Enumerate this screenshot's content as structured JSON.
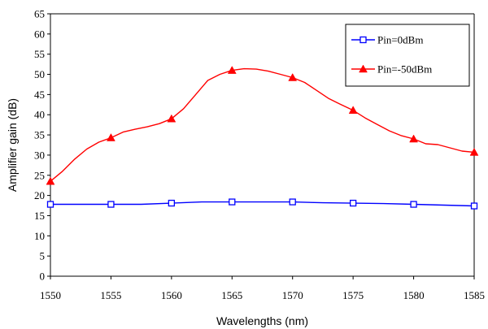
{
  "chart_data": {
    "type": "line",
    "xlabel": "Wavelengths (nm)",
    "ylabel": "Amplifier gain (dB)",
    "xlim": [
      1550,
      1585
    ],
    "ylim": [
      0,
      65
    ],
    "x_ticks": [
      1550,
      1555,
      1560,
      1565,
      1570,
      1575,
      1580,
      1585
    ],
    "y_ticks": [
      0,
      5,
      10,
      15,
      20,
      25,
      30,
      35,
      40,
      45,
      50,
      55,
      60,
      65
    ],
    "grid": false,
    "legend_position": "top-right",
    "series": [
      {
        "name": "Pin=0dBm",
        "color": "#0000ff",
        "marker": "square-open",
        "x": [
          1550,
          1555,
          1560,
          1565,
          1570,
          1575,
          1580,
          1585
        ],
        "y": [
          17.8,
          17.8,
          18.1,
          18.4,
          18.4,
          18.1,
          17.8,
          17.4
        ],
        "curve_x": [
          1550,
          1552.5,
          1555,
          1557.5,
          1560,
          1562.5,
          1565,
          1567.5,
          1570,
          1572.5,
          1575,
          1577.5,
          1580,
          1582.5,
          1585
        ],
        "curve_y": [
          17.8,
          17.8,
          17.8,
          17.8,
          18.1,
          18.4,
          18.4,
          18.4,
          18.4,
          18.2,
          18.1,
          18.0,
          17.8,
          17.6,
          17.4
        ]
      },
      {
        "name": "Pin=-50dBm",
        "color": "#ff0000",
        "marker": "triangle-filled",
        "x": [
          1550,
          1555,
          1560,
          1565,
          1570,
          1575,
          1580,
          1585
        ],
        "y": [
          23.5,
          34.3,
          39.0,
          51.0,
          49.2,
          41.1,
          34.0,
          30.7
        ],
        "curve_x": [
          1550,
          1551,
          1552,
          1553,
          1554,
          1555,
          1556,
          1557,
          1558,
          1559,
          1560,
          1561,
          1562,
          1563,
          1564,
          1565,
          1566,
          1567,
          1568,
          1569,
          1570,
          1571,
          1572,
          1573,
          1574,
          1575,
          1576,
          1577,
          1578,
          1579,
          1580,
          1581,
          1582,
          1583,
          1584,
          1585
        ],
        "curve_y": [
          23.5,
          26.0,
          29.0,
          31.5,
          33.2,
          34.3,
          35.7,
          36.4,
          37.0,
          37.8,
          39.0,
          41.5,
          45.0,
          48.5,
          50.0,
          51.0,
          51.4,
          51.3,
          50.8,
          50.0,
          49.2,
          48.0,
          46.0,
          44.0,
          42.5,
          41.1,
          39.2,
          37.6,
          36.0,
          34.8,
          34.0,
          32.8,
          32.6,
          31.8,
          31.0,
          30.7
        ]
      }
    ]
  }
}
